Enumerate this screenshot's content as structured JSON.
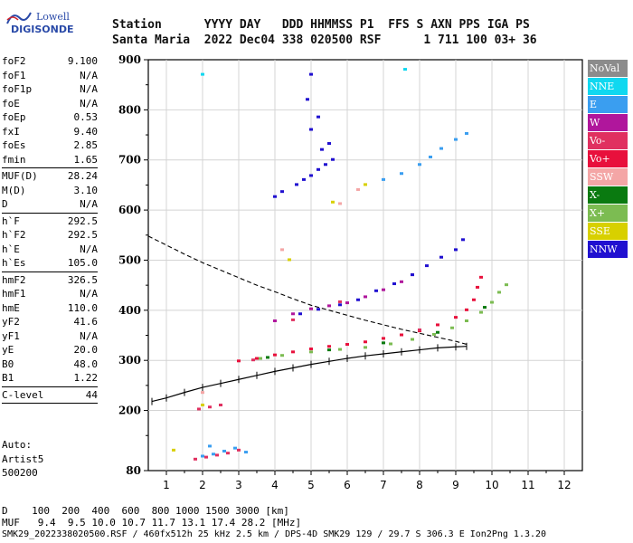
{
  "logo": {
    "top": "Lowell",
    "bottom": "DIGISONDE"
  },
  "header": {
    "line1": "Station      YYYY DAY   DDD HHMMSS P1  FFS S AXN PPS IGA PS",
    "line2": "Santa Maria  2022 Dec04 338 020500 RSF      1 711 100 03+ 36"
  },
  "params": {
    "group1": [
      {
        "k": "foF2",
        "v": "9.100"
      },
      {
        "k": "foF1",
        "v": "N/A"
      },
      {
        "k": "foF1p",
        "v": "N/A"
      },
      {
        "k": "foE",
        "v": "N/A"
      },
      {
        "k": "foEp",
        "v": "0.53"
      },
      {
        "k": "fxI",
        "v": "9.40"
      },
      {
        "k": "foEs",
        "v": "2.85"
      },
      {
        "k": "fmin",
        "v": "1.65"
      }
    ],
    "group2": [
      {
        "k": "MUF(D)",
        "v": "28.24"
      },
      {
        "k": "M(D)",
        "v": "3.10"
      },
      {
        "k": "D",
        "v": "N/A"
      }
    ],
    "group3": [
      {
        "k": "h`F",
        "v": "292.5"
      },
      {
        "k": "h`F2",
        "v": "292.5"
      },
      {
        "k": "h`E",
        "v": "N/A"
      },
      {
        "k": "h`Es",
        "v": "105.0"
      }
    ],
    "group4": [
      {
        "k": "hmF2",
        "v": "326.5"
      },
      {
        "k": "hmF1",
        "v": "N/A"
      },
      {
        "k": "hmE",
        "v": "110.0"
      },
      {
        "k": "yF2",
        "v": "41.6"
      },
      {
        "k": "yF1",
        "v": "N/A"
      },
      {
        "k": "yE",
        "v": "20.0"
      },
      {
        "k": "B0",
        "v": "48.0"
      },
      {
        "k": "B1",
        "v": "1.22"
      }
    ],
    "group5": [
      {
        "k": "C-level",
        "v": "44"
      }
    ]
  },
  "auto": {
    "line1": "Auto:",
    "line2": "Artist5",
    "line3": "500200"
  },
  "legend": [
    {
      "label": "NoVal",
      "color": "#8c8c8c"
    },
    {
      "label": "NNE",
      "color": "#10d8f0"
    },
    {
      "label": "E",
      "color": "#3a9ef0"
    },
    {
      "label": "W",
      "color": "#b0169c"
    },
    {
      "label": "Vo-",
      "color": "#e03060"
    },
    {
      "label": "Vo+",
      "color": "#e8103c"
    },
    {
      "label": "SSW",
      "color": "#f4a6a6"
    },
    {
      "label": "X-",
      "color": "#0a7a10"
    },
    {
      "label": "X+",
      "color": "#7cbc52"
    },
    {
      "label": "SSE",
      "color": "#d8d000"
    },
    {
      "label": "NNW",
      "color": "#2010d0"
    }
  ],
  "footer": {
    "d_row": "D    100  200  400  600  800 1000 1500 3000 [km]",
    "muf_row": "MUF   9.4  9.5 10.0 10.7 11.7 13.1 17.4 28.2 [MHz]",
    "file_line": "SMK29_2022338020500.RSF / 460fx512h 25 kHz 2.5 km / DPS-4D SMK29 129 / 29.7 S 306.3 E Ion2Png 1.3.20"
  },
  "chart_data": {
    "type": "scatter",
    "xlim": [
      0.5,
      12.5
    ],
    "ylim": [
      80,
      900
    ],
    "xticks": [
      1,
      2,
      3,
      4,
      5,
      6,
      7,
      8,
      9,
      10,
      11,
      12
    ],
    "yticks": [
      80,
      200,
      300,
      400,
      500,
      600,
      700,
      800,
      900
    ],
    "grid": true,
    "series": [
      {
        "name": "Vo+",
        "color": "#e8103c",
        "points": [
          [
            3.0,
            298
          ],
          [
            3.5,
            303
          ],
          [
            4.0,
            310
          ],
          [
            4.5,
            316
          ],
          [
            5.0,
            322
          ],
          [
            5.5,
            327
          ],
          [
            6.0,
            331
          ],
          [
            6.5,
            336
          ],
          [
            7.0,
            343
          ],
          [
            7.5,
            350
          ],
          [
            8.0,
            358
          ],
          [
            8.5,
            370
          ],
          [
            9.0,
            385
          ],
          [
            9.3,
            400
          ],
          [
            9.5,
            420
          ],
          [
            9.6,
            445
          ],
          [
            9.7,
            465
          ]
        ]
      },
      {
        "name": "X+",
        "color": "#7cbc52",
        "points": [
          [
            3.6,
            303
          ],
          [
            4.2,
            309
          ],
          [
            5.0,
            316
          ],
          [
            5.8,
            321
          ],
          [
            6.5,
            325
          ],
          [
            7.2,
            332
          ],
          [
            7.8,
            341
          ],
          [
            8.4,
            351
          ],
          [
            8.9,
            364
          ],
          [
            9.3,
            378
          ],
          [
            9.7,
            395
          ],
          [
            10.0,
            415
          ],
          [
            10.2,
            435
          ],
          [
            10.4,
            450
          ]
        ]
      },
      {
        "name": "W",
        "color": "#b0169c",
        "points": [
          [
            4.0,
            378
          ],
          [
            4.5,
            392
          ],
          [
            5.0,
            402
          ],
          [
            5.5,
            408
          ],
          [
            6.0,
            414
          ],
          [
            6.5,
            426
          ],
          [
            7.0,
            440
          ],
          [
            7.5,
            456
          ],
          [
            7.8,
            470
          ]
        ]
      },
      {
        "name": "NNW",
        "color": "#2010d0",
        "points": [
          [
            4.7,
            392
          ],
          [
            5.2,
            401
          ],
          [
            5.8,
            410
          ],
          [
            6.3,
            420
          ],
          [
            6.8,
            438
          ],
          [
            7.3,
            452
          ],
          [
            7.8,
            470
          ],
          [
            8.2,
            488
          ],
          [
            8.6,
            505
          ],
          [
            9.0,
            520
          ],
          [
            9.2,
            540
          ],
          [
            4.6,
            650
          ],
          [
            4.8,
            660
          ],
          [
            5.0,
            668
          ],
          [
            5.2,
            680
          ],
          [
            5.4,
            690
          ],
          [
            5.6,
            700
          ],
          [
            5.3,
            720
          ],
          [
            5.5,
            732
          ],
          [
            5.0,
            760
          ],
          [
            5.2,
            785
          ],
          [
            4.0,
            626
          ],
          [
            4.2,
            636
          ],
          [
            5.0,
            870
          ],
          [
            4.9,
            820
          ]
        ]
      },
      {
        "name": "E",
        "color": "#3a9ef0",
        "points": [
          [
            2.0,
            108
          ],
          [
            2.3,
            112
          ],
          [
            2.6,
            118
          ],
          [
            2.9,
            124
          ],
          [
            3.2,
            116
          ],
          [
            2.2,
            128
          ],
          [
            7.0,
            660
          ],
          [
            7.5,
            672
          ],
          [
            8.0,
            690
          ],
          [
            8.3,
            705
          ],
          [
            8.6,
            722
          ],
          [
            9.0,
            740
          ],
          [
            9.3,
            752
          ]
        ]
      },
      {
        "name": "Vo-",
        "color": "#e03060",
        "points": [
          [
            1.8,
            102
          ],
          [
            2.1,
            106
          ],
          [
            2.4,
            110
          ],
          [
            2.7,
            114
          ],
          [
            3.0,
            120
          ],
          [
            1.9,
            202
          ],
          [
            2.2,
            206
          ],
          [
            2.5,
            210
          ],
          [
            4.5,
            380
          ],
          [
            5.8,
            416
          ],
          [
            8.0,
            360
          ],
          [
            3.4,
            300
          ]
        ]
      },
      {
        "name": "X-",
        "color": "#0a7a10",
        "points": [
          [
            3.8,
            305
          ],
          [
            5.5,
            320
          ],
          [
            7.0,
            334
          ],
          [
            8.5,
            355
          ],
          [
            9.8,
            405
          ]
        ]
      },
      {
        "name": "NNE",
        "color": "#10d8f0",
        "points": [
          [
            2.0,
            870
          ],
          [
            7.6,
            880
          ]
        ]
      },
      {
        "name": "SSW",
        "color": "#f4a6a6",
        "points": [
          [
            2.0,
            235
          ],
          [
            4.2,
            520
          ],
          [
            5.8,
            612
          ],
          [
            6.3,
            640
          ]
        ]
      },
      {
        "name": "SSE",
        "color": "#d8d000",
        "points": [
          [
            1.2,
            120
          ],
          [
            4.4,
            500
          ],
          [
            5.6,
            615
          ],
          [
            6.5,
            650
          ],
          [
            2.0,
            210
          ]
        ]
      }
    ],
    "profile": {
      "points": [
        [
          0.6,
          218
        ],
        [
          1.0,
          225
        ],
        [
          1.5,
          236
        ],
        [
          2.0,
          246
        ],
        [
          2.5,
          254
        ],
        [
          3.0,
          262
        ],
        [
          3.5,
          270
        ],
        [
          4.0,
          278
        ],
        [
          4.5,
          285
        ],
        [
          5.0,
          292
        ],
        [
          5.5,
          298
        ],
        [
          6.0,
          304
        ],
        [
          6.5,
          309
        ],
        [
          7.0,
          313
        ],
        [
          7.5,
          317
        ],
        [
          8.0,
          321
        ],
        [
          8.5,
          325
        ],
        [
          9.0,
          327
        ],
        [
          9.3,
          328
        ]
      ]
    },
    "muf_curve": {
      "points": [
        [
          0.5,
          548
        ],
        [
          1.0,
          530
        ],
        [
          1.5,
          512
        ],
        [
          2.0,
          495
        ],
        [
          2.5,
          480
        ],
        [
          3.0,
          465
        ],
        [
          3.5,
          450
        ],
        [
          4.0,
          437
        ],
        [
          4.5,
          423
        ],
        [
          5.0,
          410
        ],
        [
          5.5,
          400
        ],
        [
          6.0,
          390
        ],
        [
          6.5,
          380
        ],
        [
          7.0,
          371
        ],
        [
          7.5,
          362
        ],
        [
          8.0,
          354
        ],
        [
          8.5,
          346
        ],
        [
          9.0,
          338
        ],
        [
          9.3,
          332
        ]
      ]
    }
  }
}
